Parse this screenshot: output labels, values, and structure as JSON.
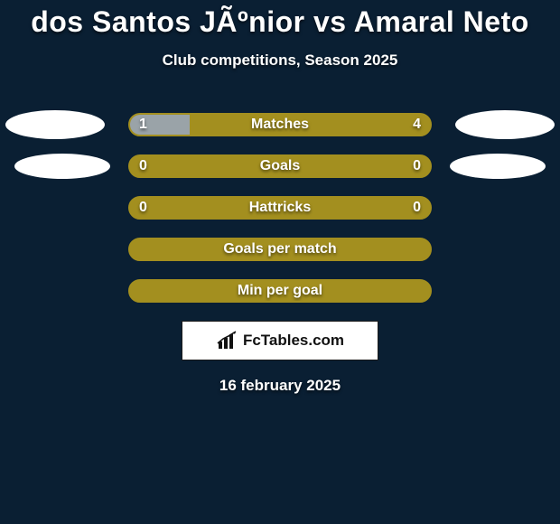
{
  "background_color": "#0a1f33",
  "title": "dos Santos JÃºnior vs Amaral Neto",
  "subtitle": "Club competitions, Season 2025",
  "date": "16 february 2025",
  "logo_text": "FcTables.com",
  "bar_border_color": "#a38f1f",
  "left_fill_color": "#9aa3a8",
  "right_fill_color": "#a38f1f",
  "text_color": "#ffffff",
  "rows": [
    {
      "label": "Matches",
      "left_value": "1",
      "right_value": "4",
      "left_pct": 20,
      "show_ovals": true,
      "oval_variant": 1
    },
    {
      "label": "Goals",
      "left_value": "0",
      "right_value": "0",
      "left_pct": 0,
      "show_ovals": true,
      "oval_variant": 2
    },
    {
      "label": "Hattricks",
      "left_value": "0",
      "right_value": "0",
      "left_pct": 0,
      "show_ovals": false
    },
    {
      "label": "Goals per match",
      "left_value": "",
      "right_value": "",
      "left_pct": 0,
      "show_ovals": false
    },
    {
      "label": "Min per goal",
      "left_value": "",
      "right_value": "",
      "left_pct": 0,
      "show_ovals": false
    }
  ]
}
